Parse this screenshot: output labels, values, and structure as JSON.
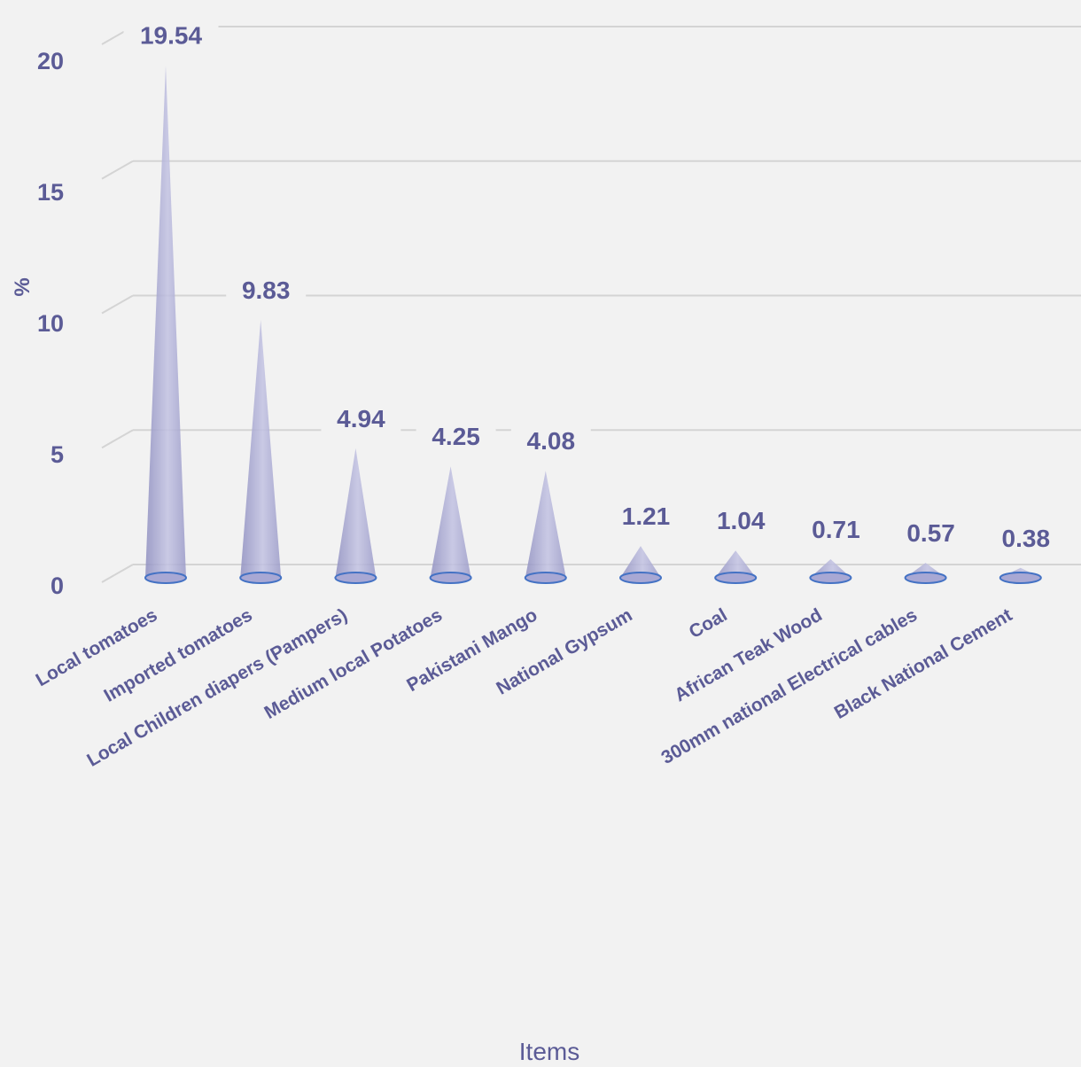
{
  "chart_data": {
    "type": "bar",
    "categories": [
      "Local tomatoes",
      "Imported tomatoes",
      "Local Children diapers (Pampers)",
      "Medium local Potatoes",
      "Pakistani Mango",
      "National Gypsum",
      "Coal",
      "African Teak Wood",
      "300mm national Electrical cables",
      "Black National Cement"
    ],
    "values": [
      19.54,
      9.83,
      4.94,
      4.25,
      4.08,
      1.21,
      1.04,
      0.71,
      0.57,
      0.38
    ],
    "value_labels": [
      "19.54",
      "9.83",
      "4.94",
      "4.25",
      "4.08",
      "1.21",
      "1.04",
      "0.71",
      "0.57",
      "0.38"
    ],
    "title": "",
    "xlabel": "Items",
    "ylabel": "%",
    "ylim": [
      0,
      20
    ],
    "yticks": [
      "0",
      "5",
      "10",
      "15",
      "20"
    ],
    "grid": true,
    "bar_shape": "cone",
    "colors": {
      "cone": "#a9a9d1",
      "base_stroke": "#4472c4",
      "text": "#5b5b96",
      "grid": "#d4d4d4",
      "background": "#f2f2f2"
    }
  }
}
